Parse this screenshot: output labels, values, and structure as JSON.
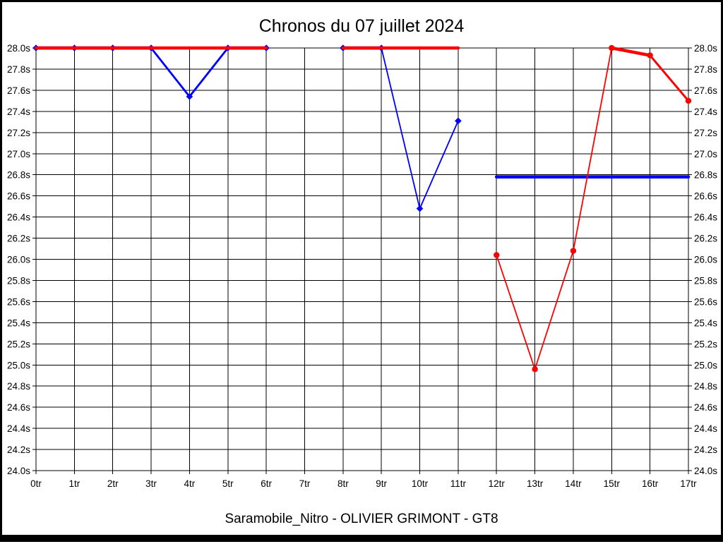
{
  "chart_data": {
    "type": "line",
    "title": "Chronos du 07 juillet 2024",
    "caption": "Saramobile_Nitro - OLIVIER GRIMONT - GT8",
    "xlabel": "",
    "ylabel": "",
    "x_unit": "tr",
    "y_unit": "s",
    "grid": true,
    "legend": "none",
    "ylim": [
      24.0,
      28.0
    ],
    "y_tick_step": 0.2,
    "x_ticks": [
      "0tr",
      "1tr",
      "2tr",
      "3tr",
      "4tr",
      "5tr",
      "6tr",
      "7tr",
      "8tr",
      "9tr",
      "10tr",
      "11tr",
      "12tr",
      "13tr",
      "14tr",
      "15tr",
      "16tr",
      "17tr"
    ],
    "y_ticks": [
      {
        "v": 28.0,
        "label": "28.0s"
      },
      {
        "v": 27.8,
        "label": "27.8s"
      },
      {
        "v": 27.6,
        "label": "27.6s"
      },
      {
        "v": 27.4,
        "label": "27.4s"
      },
      {
        "v": 27.2,
        "label": "27.2s"
      },
      {
        "v": 27.0,
        "label": "27.0s"
      },
      {
        "v": 26.8,
        "label": "26.8s"
      },
      {
        "v": 26.6,
        "label": "26.6s"
      },
      {
        "v": 26.4,
        "label": "26.4s"
      },
      {
        "v": 26.2,
        "label": "26.2s"
      },
      {
        "v": 26.0,
        "label": "26.0s"
      },
      {
        "v": 25.8,
        "label": "25.8s"
      },
      {
        "v": 25.6,
        "label": "25.6s"
      },
      {
        "v": 25.4,
        "label": "25.4s"
      },
      {
        "v": 25.2,
        "label": "25.2s"
      },
      {
        "v": 25.0,
        "label": "25.0s"
      },
      {
        "v": 24.8,
        "label": "24.8s"
      },
      {
        "v": 24.6,
        "label": "24.6s"
      },
      {
        "v": 24.4,
        "label": "24.4s"
      },
      {
        "v": 24.2,
        "label": "24.2s"
      },
      {
        "v": 24.0,
        "label": "24.0s"
      }
    ],
    "series": [
      {
        "name": "blue-series",
        "color": "#0000ff",
        "marker": "diamond",
        "segments": [
          {
            "x": [
              0,
              1,
              2,
              3,
              4,
              5,
              6
            ],
            "y": [
              28.0,
              28.0,
              28.0,
              28.0,
              27.54,
              28.0,
              28.0
            ],
            "markers": true
          },
          {
            "x": [
              8,
              9,
              10,
              11
            ],
            "y": [
              28.0,
              28.0,
              26.48,
              27.31
            ],
            "markers": true
          },
          {
            "x": [
              12,
              13,
              14,
              15,
              16,
              17
            ],
            "y": [
              26.78,
              26.78,
              26.78,
              26.78,
              26.78,
              26.78
            ],
            "markers": false
          }
        ]
      },
      {
        "name": "red-series",
        "color": "#ff0000",
        "marker": "circle",
        "segments": [
          {
            "x": [
              0,
              1,
              2,
              3,
              4,
              5,
              6
            ],
            "y": [
              28.0,
              28.0,
              28.0,
              28.0,
              28.0,
              28.0,
              28.0
            ],
            "markers": false
          },
          {
            "x": [
              8,
              9,
              10,
              11
            ],
            "y": [
              28.0,
              28.0,
              28.0,
              28.0
            ],
            "markers": false
          },
          {
            "x": [
              12,
              13,
              14,
              15,
              16,
              17
            ],
            "y": [
              26.04,
              24.96,
              26.08,
              28.0,
              27.93,
              27.5
            ],
            "markers": true
          }
        ]
      }
    ]
  }
}
